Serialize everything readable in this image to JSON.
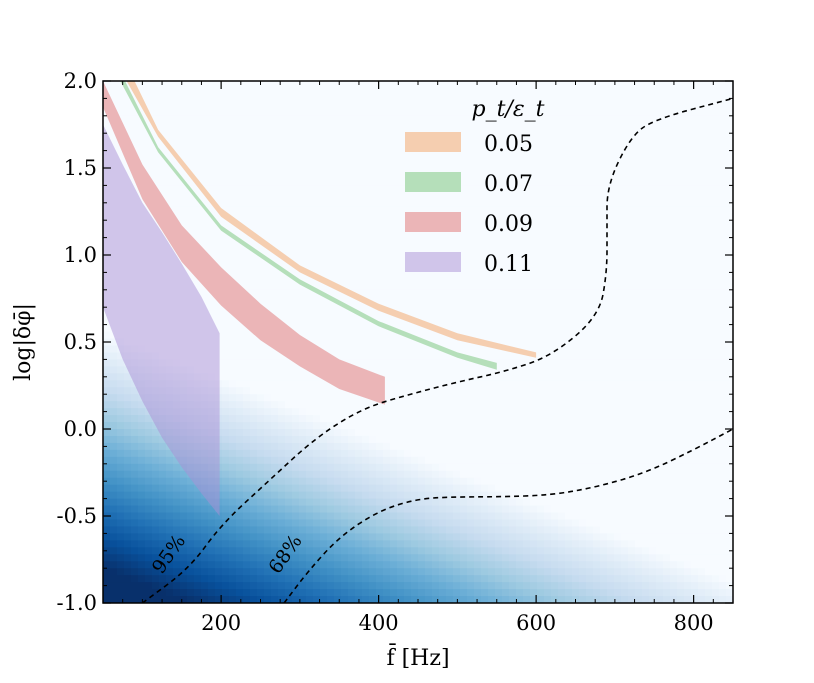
{
  "chart_data": {
    "type": "heatmap",
    "title": "",
    "xlabel": "f̄ [Hz]",
    "ylabel": "log|δφ̄|",
    "xlim": [
      50,
      850
    ],
    "ylim": [
      -1.0,
      2.0
    ],
    "x_ticks": [
      200,
      400,
      600,
      800
    ],
    "y_ticks": [
      -1.0,
      -0.5,
      0.0,
      0.5,
      1.0,
      1.5,
      2.0
    ],
    "x_tick_labels": [
      "200",
      "400",
      "600",
      "800"
    ],
    "y_tick_labels": [
      "-1.0",
      "-0.5",
      "0.0",
      "0.5",
      "1.0",
      "1.5",
      "2.0"
    ],
    "legend": {
      "title": "p_t/ε_t",
      "placement": "top-center",
      "entries": [
        {
          "label": "0.05",
          "color": "#f4a261"
        },
        {
          "label": "0.07",
          "color": "#74c476"
        },
        {
          "label": "0.09",
          "color": "#e07070"
        },
        {
          "label": "0.11",
          "color": "#a990d6"
        }
      ]
    },
    "colormap": "Blues",
    "contours": [
      {
        "label": "95%",
        "label_at": [
          140,
          -0.74
        ],
        "points": [
          [
            100,
            -1.0
          ],
          [
            160,
            -0.8
          ],
          [
            200,
            -0.55
          ],
          [
            260,
            -0.3
          ],
          [
            320,
            -0.05
          ],
          [
            380,
            0.12
          ],
          [
            440,
            0.2
          ],
          [
            500,
            0.27
          ],
          [
            560,
            0.33
          ],
          [
            620,
            0.42
          ],
          [
            680,
            0.65
          ],
          [
            690,
            0.9
          ],
          [
            690,
            1.15
          ],
          [
            690,
            1.4
          ],
          [
            720,
            1.68
          ],
          [
            750,
            1.78
          ],
          [
            850,
            1.9
          ]
        ]
      },
      {
        "label": "68%",
        "label_at": [
          288,
          -0.74
        ],
        "points": [
          [
            280,
            -1.0
          ],
          [
            310,
            -0.82
          ],
          [
            350,
            -0.62
          ],
          [
            400,
            -0.47
          ],
          [
            450,
            -0.4
          ],
          [
            500,
            -0.39
          ],
          [
            550,
            -0.39
          ],
          [
            620,
            -0.38
          ],
          [
            680,
            -0.33
          ],
          [
            740,
            -0.25
          ],
          [
            800,
            -0.12
          ],
          [
            850,
            -0.0
          ]
        ]
      }
    ],
    "series": [
      {
        "name": "0.05",
        "color": "#f4a261",
        "upper": [
          [
            90,
            2.0
          ],
          [
            120,
            1.72
          ],
          [
            200,
            1.27
          ],
          [
            300,
            0.94
          ],
          [
            400,
            0.72
          ],
          [
            500,
            0.55
          ],
          [
            600,
            0.44
          ]
        ],
        "lower": [
          [
            600,
            0.41
          ],
          [
            500,
            0.51
          ],
          [
            400,
            0.68
          ],
          [
            300,
            0.9
          ],
          [
            200,
            1.22
          ],
          [
            120,
            1.68
          ],
          [
            80,
            2.0
          ]
        ]
      },
      {
        "name": "0.07",
        "color": "#74c476",
        "upper": [
          [
            78,
            2.0
          ],
          [
            120,
            1.62
          ],
          [
            200,
            1.17
          ],
          [
            300,
            0.86
          ],
          [
            400,
            0.62
          ],
          [
            500,
            0.44
          ],
          [
            550,
            0.38
          ]
        ],
        "lower": [
          [
            550,
            0.34
          ],
          [
            500,
            0.41
          ],
          [
            400,
            0.59
          ],
          [
            300,
            0.83
          ],
          [
            200,
            1.14
          ],
          [
            120,
            1.59
          ],
          [
            72,
            2.0
          ]
        ]
      },
      {
        "name": "0.09",
        "color": "#e07070",
        "upper": [
          [
            50,
            2.0
          ],
          [
            100,
            1.52
          ],
          [
            150,
            1.17
          ],
          [
            200,
            0.93
          ],
          [
            250,
            0.72
          ],
          [
            300,
            0.54
          ],
          [
            350,
            0.4
          ],
          [
            408,
            0.3
          ]
        ],
        "lower": [
          [
            408,
            0.14
          ],
          [
            350,
            0.23
          ],
          [
            300,
            0.36
          ],
          [
            250,
            0.51
          ],
          [
            200,
            0.71
          ],
          [
            150,
            0.96
          ],
          [
            100,
            1.32
          ],
          [
            50,
            1.85
          ]
        ]
      },
      {
        "name": "0.11",
        "color": "#a990d6",
        "upper": [
          [
            50,
            1.75
          ],
          [
            75,
            1.52
          ],
          [
            100,
            1.3
          ],
          [
            125,
            1.13
          ],
          [
            150,
            0.95
          ],
          [
            175,
            0.76
          ],
          [
            198,
            0.55
          ]
        ],
        "lower": [
          [
            198,
            -0.5
          ],
          [
            175,
            -0.37
          ],
          [
            150,
            -0.22
          ],
          [
            125,
            -0.05
          ],
          [
            100,
            0.16
          ],
          [
            75,
            0.4
          ],
          [
            50,
            0.7
          ]
        ]
      }
    ]
  }
}
